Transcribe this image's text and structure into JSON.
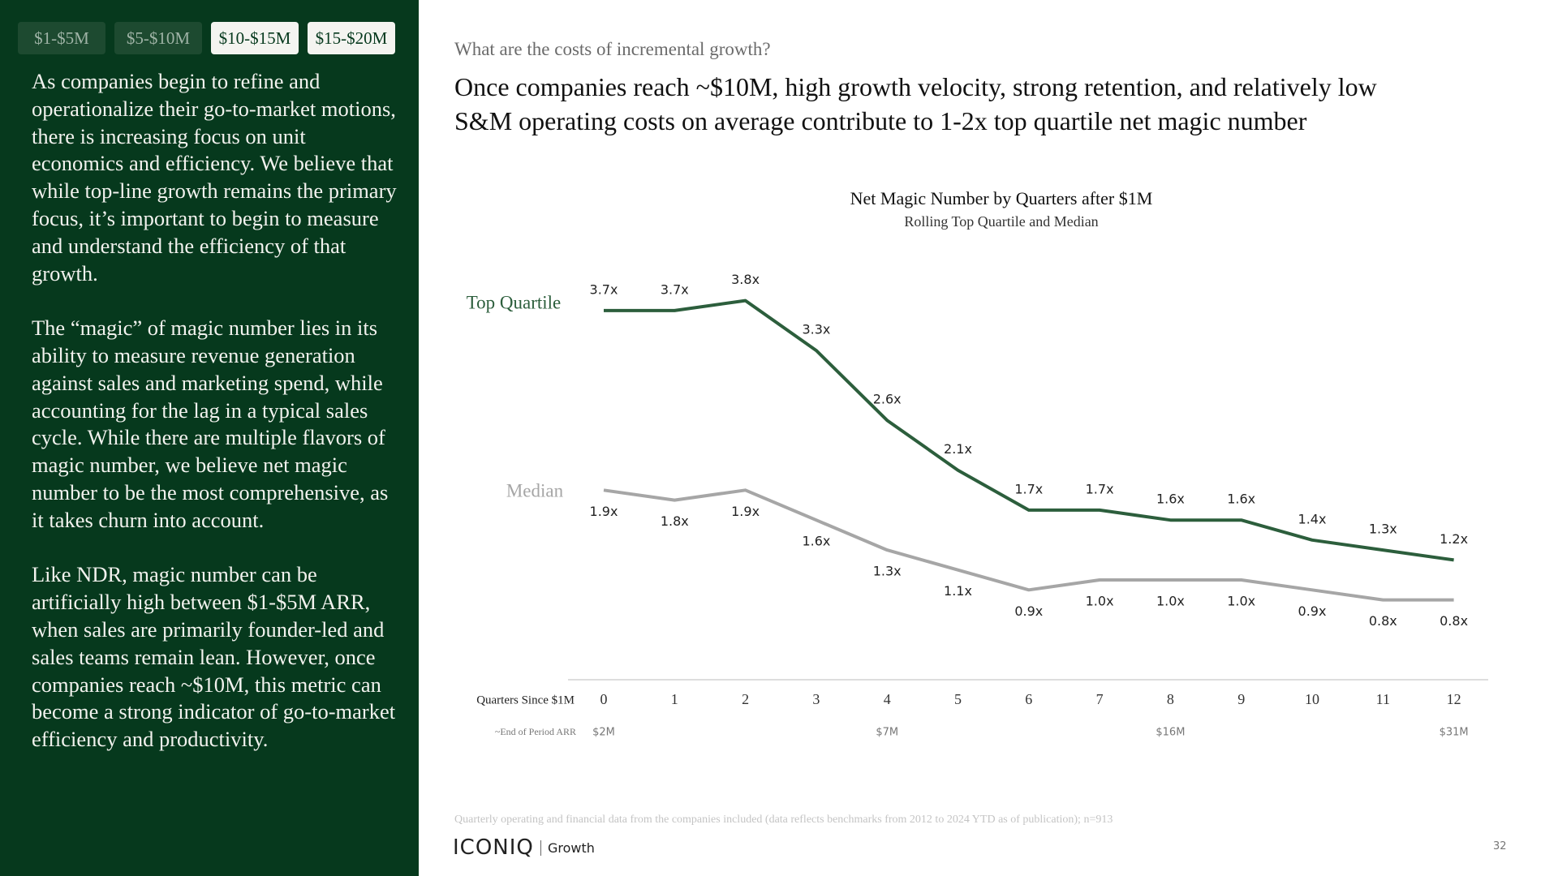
{
  "tabs": [
    {
      "label": "$1-$5M",
      "active": false
    },
    {
      "label": "$5-$10M",
      "active": false
    },
    {
      "label": "$10-$15M",
      "active": true
    },
    {
      "label": "$15-$20M",
      "active": true
    }
  ],
  "sidebar": {
    "paragraphs": [
      "As companies begin to refine and operationalize their go-to-market motions, there is increasing focus on unit economics and efficiency. We believe that while top-line growth remains the primary focus, it’s important to begin to measure and understand the efficiency of that growth.",
      "The “magic” of magic number lies in its ability to measure revenue generation against sales and marketing spend, while accounting for the lag in a typical sales cycle. While there are multiple flavors of magic number, we believe net magic number to be the most comprehensive, as it takes churn into account.",
      "Like NDR, magic number can be artificially high between $1-$5M ARR, when sales are primarily founder-led and sales teams remain lean. However, once companies reach ~$10M, this metric can become a strong indicator of go-to-market efficiency and productivity."
    ]
  },
  "header": {
    "eyebrow": "What are the costs of incremental growth?",
    "title": "Once companies reach ~$10M, high growth velocity, strong retention, and relatively low S&M operating costs on average contribute to 1-2x top quartile net magic number"
  },
  "chart_data": {
    "type": "line",
    "title": "Net Magic Number by Quarters after $1M",
    "subtitle": "Rolling Top Quartile and Median",
    "x_label": "Quarters Since $1M",
    "categories": [
      "0",
      "1",
      "2",
      "3",
      "4",
      "5",
      "6",
      "7",
      "8",
      "9",
      "10",
      "11",
      "12"
    ],
    "secondary_label": "~End of Period ARR",
    "secondary_categories": [
      "$2M",
      null,
      null,
      null,
      "$7M",
      null,
      null,
      null,
      "$16M",
      null,
      null,
      null,
      "$31M"
    ],
    "ylim": [
      0,
      4
    ],
    "series": [
      {
        "name": "Top Quartile",
        "color": "#2c5e3c",
        "values": [
          3.7,
          3.7,
          3.8,
          3.3,
          2.6,
          2.1,
          1.7,
          1.7,
          1.6,
          1.6,
          1.4,
          1.3,
          1.2
        ],
        "value_labels": [
          "3.7x",
          "3.7x",
          "3.8x",
          "3.3x",
          "2.6x",
          "2.1x",
          "1.7x",
          "1.7x",
          "1.6x",
          "1.6x",
          "1.4x",
          "1.3x",
          "1.2x"
        ]
      },
      {
        "name": "Median",
        "color": "#a6a6a6",
        "values": [
          1.9,
          1.8,
          1.9,
          1.6,
          1.3,
          1.1,
          0.9,
          1.0,
          1.0,
          1.0,
          0.9,
          0.8,
          0.8
        ],
        "value_labels": [
          "1.9x",
          "1.8x",
          "1.9x",
          "1.6x",
          "1.3x",
          "1.1x",
          "0.9x",
          "1.0x",
          "1.0x",
          "1.0x",
          "0.9x",
          "0.8x",
          "0.8x"
        ]
      }
    ]
  },
  "footer": {
    "note": "Quarterly operating and financial data from the companies included (data reflects benchmarks from 2012 to 2024 YTD as of publication); n=913",
    "brand": "ICONIQ",
    "division": "Growth",
    "page": "32"
  }
}
